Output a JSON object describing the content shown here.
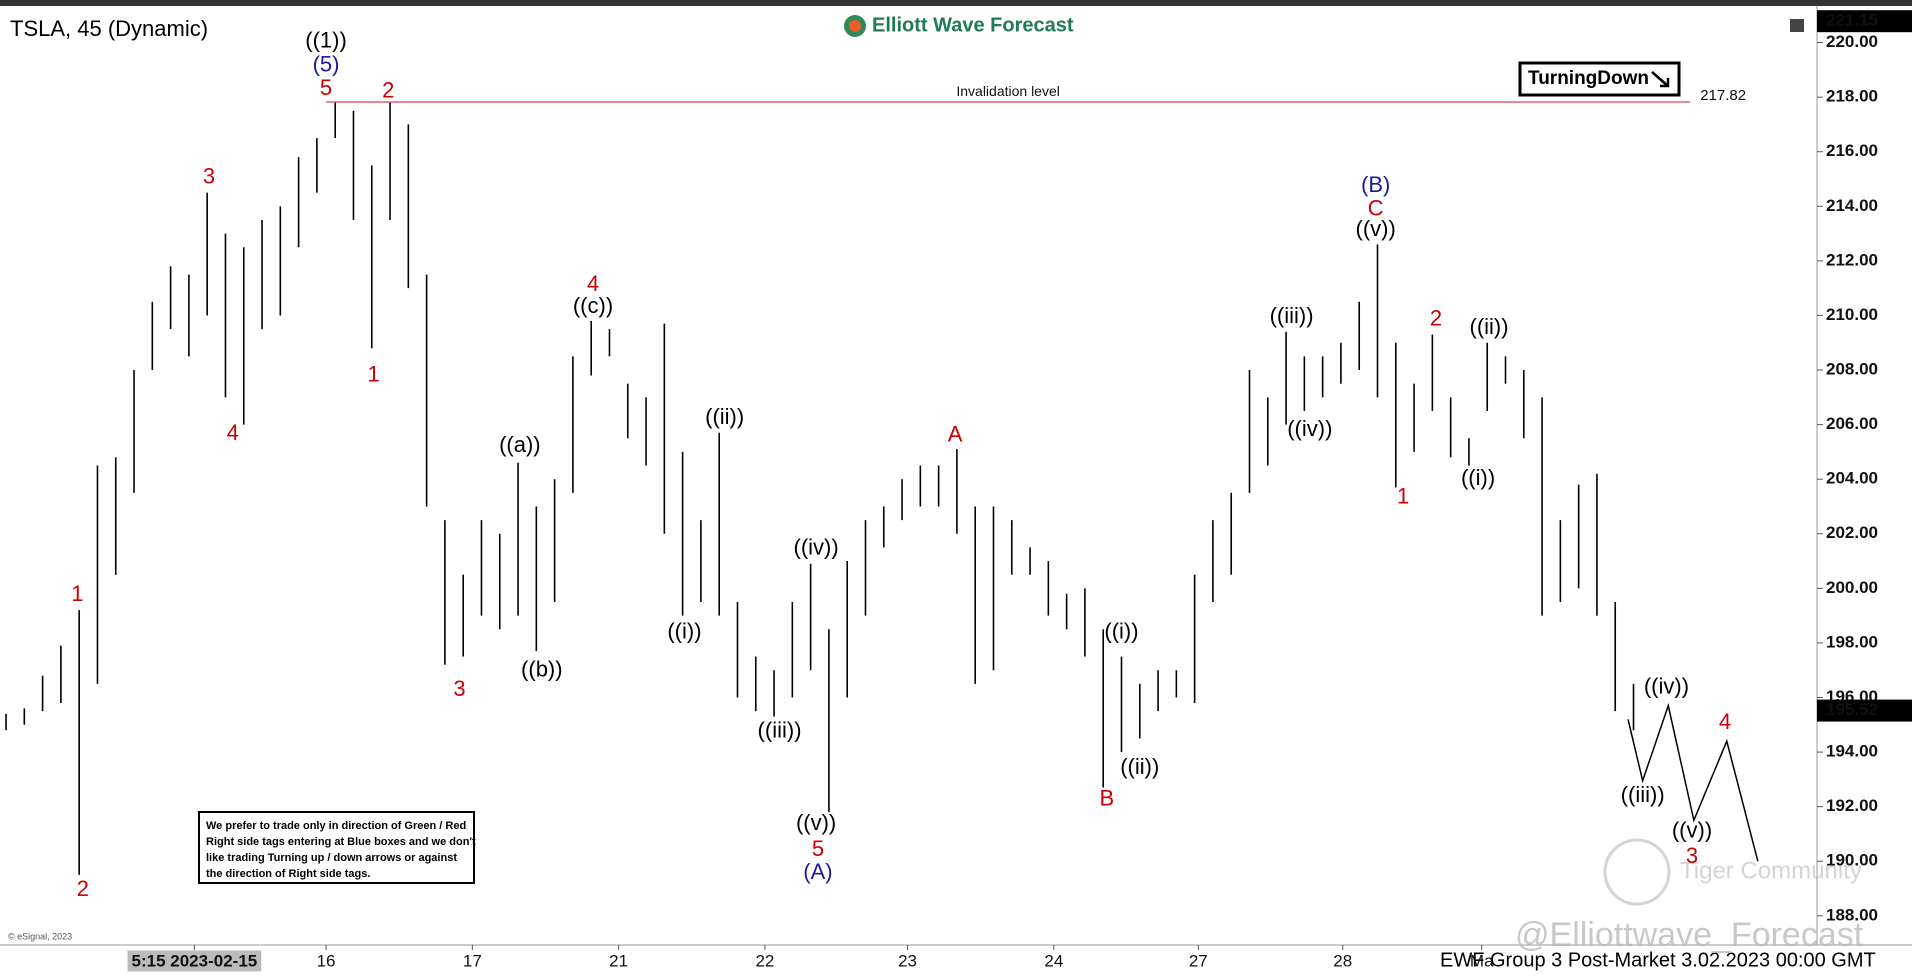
{
  "chart_data": {
    "type": "ohlc",
    "title": "TSLA, 45 (Dynamic)",
    "brand": "Elliott Wave Forecast",
    "badge": "TurningDown",
    "color": "#000000",
    "bars": {
      "high": [
        195.4,
        195.6,
        196.8,
        197.9,
        199.2,
        204.5,
        204.8,
        208.0,
        210.5,
        211.8,
        211.5,
        214.5,
        213.0,
        212.5,
        213.5,
        214.0,
        215.8,
        216.5,
        217.8,
        217.5,
        215.5,
        217.8,
        217.0,
        211.5,
        202.5,
        200.5,
        202.5,
        202.0,
        204.6,
        203.0,
        204.0,
        208.5,
        209.8,
        209.5,
        207.5,
        207.0,
        209.7,
        205.0,
        202.5,
        205.7,
        199.5,
        197.5,
        197.0,
        199.5,
        200.9,
        198.5,
        201.0,
        202.5,
        203.0,
        204.0,
        204.5,
        204.5,
        205.1,
        203.0,
        203.0,
        202.5,
        201.5,
        201.0,
        199.8,
        200.0,
        198.5,
        197.5,
        196.5,
        197.0,
        197.0,
        200.5,
        202.5,
        203.5,
        208.0,
        207.0,
        209.4,
        208.5,
        208.5,
        209.0,
        210.5,
        212.6,
        209.0,
        207.5,
        209.3,
        207.0,
        205.5,
        209.0,
        208.5,
        208.0,
        207.0,
        202.5,
        203.8,
        204.2,
        199.5,
        196.5
      ],
      "low": [
        194.8,
        195.0,
        195.5,
        195.8,
        189.5,
        196.5,
        200.5,
        203.5,
        208.0,
        209.5,
        208.5,
        210.0,
        207.0,
        206.0,
        209.5,
        210.0,
        212.5,
        214.5,
        216.5,
        213.5,
        208.8,
        213.5,
        211.0,
        203.0,
        197.2,
        197.5,
        199.0,
        198.5,
        199.0,
        197.7,
        199.5,
        203.5,
        207.8,
        208.5,
        205.5,
        204.5,
        202.0,
        199.0,
        199.5,
        199.0,
        196.0,
        195.5,
        195.3,
        196.0,
        197.0,
        191.8,
        196.0,
        199.0,
        201.5,
        202.5,
        203.0,
        203.0,
        202.0,
        196.5,
        197.0,
        200.5,
        200.5,
        199.0,
        198.5,
        197.5,
        192.7,
        194.0,
        194.5,
        195.5,
        196.0,
        195.8,
        199.5,
        200.5,
        203.5,
        204.5,
        206.0,
        206.5,
        207.0,
        207.5,
        208.0,
        207.0,
        203.7,
        205.0,
        206.5,
        204.8,
        204.5,
        206.5,
        207.5,
        205.5,
        199.0,
        199.5,
        200.0,
        199.0,
        195.5,
        194.8
      ]
    },
    "xlim": [
      -0.33,
      98.87
    ],
    "ylim": [
      186.93,
      221.12
    ],
    "xticks": [
      {
        "value": 10.3,
        "label": "5:15 2023-02-15"
      },
      {
        "value": 17.5,
        "label": "16"
      },
      {
        "value": 25.5,
        "label": "17"
      },
      {
        "value": 33.5,
        "label": "21"
      },
      {
        "value": 41.5,
        "label": "22"
      },
      {
        "value": 49.3,
        "label": "23"
      },
      {
        "value": 57.3,
        "label": "24"
      },
      {
        "value": 65.2,
        "label": "27"
      },
      {
        "value": 73.1,
        "label": "28"
      },
      {
        "value": 80.7,
        "label": "Ma"
      }
    ],
    "yticks": [
      {
        "value": 188,
        "label": "188.00"
      },
      {
        "value": 190,
        "label": "190.00"
      },
      {
        "value": 192,
        "label": "192.00"
      },
      {
        "value": 194,
        "label": "194.00"
      },
      {
        "value": 196,
        "label": "196.00"
      },
      {
        "value": 198,
        "label": "198.00"
      },
      {
        "value": 200,
        "label": "200.00"
      },
      {
        "value": 202,
        "label": "202.00"
      },
      {
        "value": 204,
        "label": "204.00"
      },
      {
        "value": 206,
        "label": "206.00"
      },
      {
        "value": 208,
        "label": "208.00"
      },
      {
        "value": 210,
        "label": "210.00"
      },
      {
        "value": 212,
        "label": "212.00"
      },
      {
        "value": 214,
        "label": "214.00"
      },
      {
        "value": 216,
        "label": "216.00"
      },
      {
        "value": 218,
        "label": "218.00"
      },
      {
        "value": 220,
        "label": "220.00"
      }
    ],
    "invalidation": {
      "label": "Invalidation level",
      "value": 217.82,
      "x": [
        17.5,
        92.1
      ],
      "color": "#e06070"
    },
    "last_price": 195.52,
    "top_price": 221.15,
    "projection": {
      "x": [
        88.7,
        89.5,
        90.9,
        92.3,
        94.1,
        95.8
      ],
      "y": [
        195.2,
        192.95,
        195.7,
        191.5,
        194.4,
        190.0
      ]
    },
    "annotations": [
      {
        "text": "((1))",
        "x": 17.5,
        "y": 220.04,
        "color": "#000000"
      },
      {
        "text": "(5)",
        "x": 17.5,
        "y": 219.15,
        "color": "#1a1aa0"
      },
      {
        "text": "5",
        "x": 17.5,
        "y": 218.3,
        "color": "#cc0000"
      },
      {
        "text": "2",
        "x": 20.9,
        "y": 218.2,
        "color": "#cc0000"
      },
      {
        "text": "3",
        "x": 11.1,
        "y": 215.04,
        "color": "#cc0000"
      },
      {
        "text": "4",
        "x": 12.4,
        "y": 205.65,
        "color": "#cc0000"
      },
      {
        "text": "1",
        "x": 20.1,
        "y": 207.8,
        "color": "#cc0000"
      },
      {
        "text": "1",
        "x": 3.9,
        "y": 199.75,
        "color": "#cc0000"
      },
      {
        "text": "2",
        "x": 4.2,
        "y": 188.94,
        "color": "#cc0000"
      },
      {
        "text": "3",
        "x": 24.8,
        "y": 196.27,
        "color": "#cc0000"
      },
      {
        "text": "((a))",
        "x": 28.1,
        "y": 205.2,
        "color": "#000000"
      },
      {
        "text": "((b))",
        "x": 29.3,
        "y": 196.98,
        "color": "#000000"
      },
      {
        "text": "4",
        "x": 32.1,
        "y": 211.1,
        "color": "#cc0000"
      },
      {
        "text": "((c))",
        "x": 32.1,
        "y": 210.3,
        "color": "#000000"
      },
      {
        "text": "((i))",
        "x": 37.1,
        "y": 198.37,
        "color": "#000000"
      },
      {
        "text": "((ii))",
        "x": 39.3,
        "y": 206.23,
        "color": "#000000"
      },
      {
        "text": "((iii))",
        "x": 42.3,
        "y": 194.75,
        "color": "#000000"
      },
      {
        "text": "((iv))",
        "x": 44.3,
        "y": 201.45,
        "color": "#000000"
      },
      {
        "text": "((v))",
        "x": 44.3,
        "y": 191.35,
        "color": "#000000"
      },
      {
        "text": "5",
        "x": 44.4,
        "y": 190.41,
        "color": "#cc0000"
      },
      {
        "text": "(A)",
        "x": 44.4,
        "y": 189.56,
        "color": "#1a1aa0"
      },
      {
        "text": "A",
        "x": 51.9,
        "y": 205.6,
        "color": "#cc0000"
      },
      {
        "text": "B",
        "x": 60.2,
        "y": 192.25,
        "color": "#cc0000"
      },
      {
        "text": "((i))",
        "x": 61.0,
        "y": 198.37,
        "color": "#000000"
      },
      {
        "text": "((ii))",
        "x": 62.0,
        "y": 193.41,
        "color": "#000000"
      },
      {
        "text": "((iii))",
        "x": 70.3,
        "y": 209.94,
        "color": "#000000"
      },
      {
        "text": "((iv))",
        "x": 71.3,
        "y": 205.79,
        "color": "#000000"
      },
      {
        "text": "(B)",
        "x": 74.9,
        "y": 214.73,
        "color": "#1a1aa0"
      },
      {
        "text": "C",
        "x": 74.9,
        "y": 213.88,
        "color": "#cc0000"
      },
      {
        "text": "((v))",
        "x": 74.9,
        "y": 213.12,
        "color": "#000000"
      },
      {
        "text": "1",
        "x": 76.4,
        "y": 203.33,
        "color": "#cc0000"
      },
      {
        "text": "2",
        "x": 78.2,
        "y": 209.85,
        "color": "#cc0000"
      },
      {
        "text": "((ii))",
        "x": 81.1,
        "y": 209.54,
        "color": "#000000"
      },
      {
        "text": "((i))",
        "x": 80.5,
        "y": 204.0,
        "color": "#000000"
      },
      {
        "text": "((iii))",
        "x": 89.5,
        "y": 192.38,
        "color": "#000000"
      },
      {
        "text": "((iv))",
        "x": 90.8,
        "y": 196.36,
        "color": "#000000"
      },
      {
        "text": "((v))",
        "x": 92.2,
        "y": 191.08,
        "color": "#000000"
      },
      {
        "text": "3",
        "x": 92.2,
        "y": 190.14,
        "color": "#cc0000"
      },
      {
        "text": "4",
        "x": 94.0,
        "y": 195.06,
        "color": "#cc0000"
      }
    ],
    "disclaimer": [
      "We prefer to trade only in direction of Green / Red",
      "Right side tags entering at Blue boxes and we don't",
      "like trading Turning up / down arrows or against",
      "the direction of Right side tags."
    ],
    "credit": "© eSignal, 2023",
    "footer": "EWF Group 3 Post-Market 3.02.2023 00:00 GMT",
    "watermark": "@Elliottwave_Forecast",
    "community": "Tiger Community"
  }
}
